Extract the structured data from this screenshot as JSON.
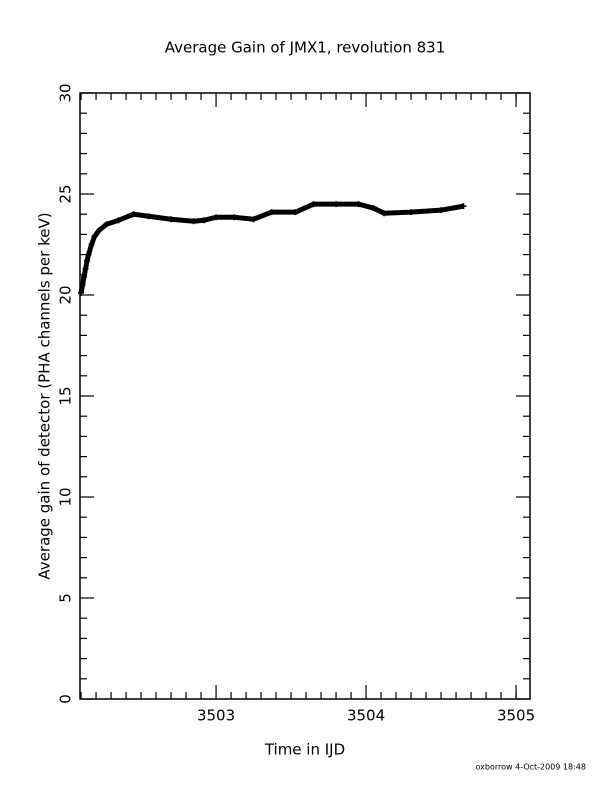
{
  "chart_data": {
    "type": "scatter",
    "title": "Average Gain of JMX1, revolution 831",
    "x_label": "Time in IJD",
    "y_label": "Average gain of detector (PHA channels per keV)",
    "footer": "oxborrow  4-Oct-2009 18:48",
    "color": "#000000",
    "x": [
      3502.1,
      3502.11,
      3502.12,
      3502.13,
      3502.14,
      3502.15,
      3502.17,
      3502.19,
      3502.22,
      3502.27,
      3502.35,
      3502.45,
      3502.55,
      3502.7,
      3502.85,
      3502.92,
      3503.0,
      3503.12,
      3503.25,
      3503.37,
      3503.53,
      3503.65,
      3503.8,
      3503.95,
      3504.05,
      3504.12,
      3504.3,
      3504.5,
      3504.65
    ],
    "values": [
      20.1,
      20.5,
      20.9,
      21.3,
      21.7,
      22.0,
      22.5,
      22.9,
      23.2,
      23.5,
      23.7,
      24.0,
      23.9,
      23.75,
      23.65,
      23.7,
      23.85,
      23.85,
      23.75,
      24.1,
      24.1,
      24.5,
      24.5,
      24.5,
      24.3,
      24.05,
      24.1,
      24.2,
      24.4
    ],
    "xlim": [
      3502.093,
      3505.093
    ],
    "ylim": [
      0,
      30
    ],
    "xticks": [
      3503,
      3504,
      3505
    ],
    "yticks": [
      0,
      5,
      10,
      15,
      20,
      25,
      30
    ],
    "xminor": [
      3502.1,
      3502.2,
      3502.3,
      3502.4,
      3502.5,
      3502.6,
      3502.7,
      3502.8,
      3502.9,
      3503.1,
      3503.2,
      3503.3,
      3503.4,
      3503.5,
      3503.6,
      3503.7,
      3503.8,
      3503.9,
      3504.1,
      3504.2,
      3504.3,
      3504.4,
      3504.5,
      3504.6,
      3504.7,
      3504.8,
      3504.9,
      3505.0
    ],
    "yminor": [
      1,
      2,
      3,
      4,
      6,
      7,
      8,
      9,
      11,
      12,
      13,
      14,
      16,
      17,
      18,
      19,
      21,
      22,
      23,
      24,
      26,
      27,
      28,
      29
    ]
  }
}
